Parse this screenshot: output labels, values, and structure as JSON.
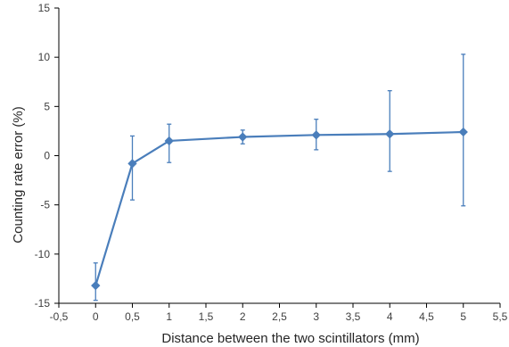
{
  "chart_data": {
    "type": "line",
    "title": "",
    "xlabel": "Distance between the two scintillators (mm)",
    "ylabel": "Counting rate error (%)",
    "xlim": [
      -0.5,
      5.5
    ],
    "ylim": [
      -15,
      15
    ],
    "x_ticks": [
      -0.5,
      0,
      0.5,
      1,
      1.5,
      2,
      2.5,
      3,
      3.5,
      4,
      4.5,
      5,
      5.5
    ],
    "x_tick_labels": [
      "-0,5",
      "0",
      "0,5",
      "1",
      "1,5",
      "2",
      "2,5",
      "3",
      "3,5",
      "4",
      "4,5",
      "5",
      "5,5"
    ],
    "y_ticks": [
      -15,
      -10,
      -5,
      0,
      5,
      10,
      15
    ],
    "y_tick_labels": [
      "-15",
      "-10",
      "-5",
      "0",
      "5",
      "10",
      "15"
    ],
    "grid": false,
    "legend": "none",
    "colors": {
      "series": "#4a7ebb",
      "axis": "#000000"
    },
    "series": [
      {
        "marker": "diamond",
        "x": [
          0,
          0.5,
          1,
          2,
          3,
          4,
          5
        ],
        "y": [
          -13.2,
          -0.8,
          1.5,
          1.9,
          2.1,
          2.2,
          2.4
        ],
        "err_low": [
          -14.7,
          -4.5,
          -0.7,
          1.2,
          0.6,
          -1.6,
          -5.1
        ],
        "err_high": [
          -10.9,
          2.0,
          3.2,
          2.6,
          3.7,
          6.6,
          10.3
        ]
      }
    ]
  }
}
